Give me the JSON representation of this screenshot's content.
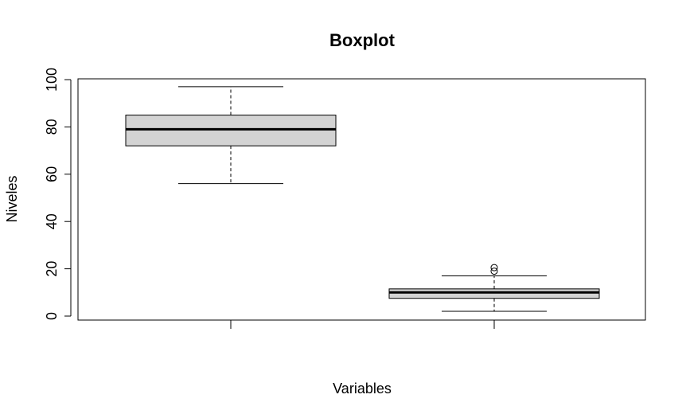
{
  "chart_data": {
    "type": "boxplot",
    "title": "Boxplot",
    "xlabel": "Variables",
    "ylabel": "Niveles",
    "ylim": [
      0,
      100
    ],
    "yticks": [
      0,
      20,
      40,
      60,
      80,
      100
    ],
    "grid": false,
    "legend": "none",
    "box_fill": "#d3d3d3",
    "line_color": "#000000",
    "series": [
      {
        "whisker_low": 56,
        "q1": 72,
        "median": 79,
        "q3": 85,
        "whisker_high": 97,
        "outliers": []
      },
      {
        "whisker_low": 2,
        "q1": 7.5,
        "median": 10,
        "q3": 11.5,
        "whisker_high": 17,
        "outliers": [
          19,
          20.5
        ]
      }
    ]
  }
}
